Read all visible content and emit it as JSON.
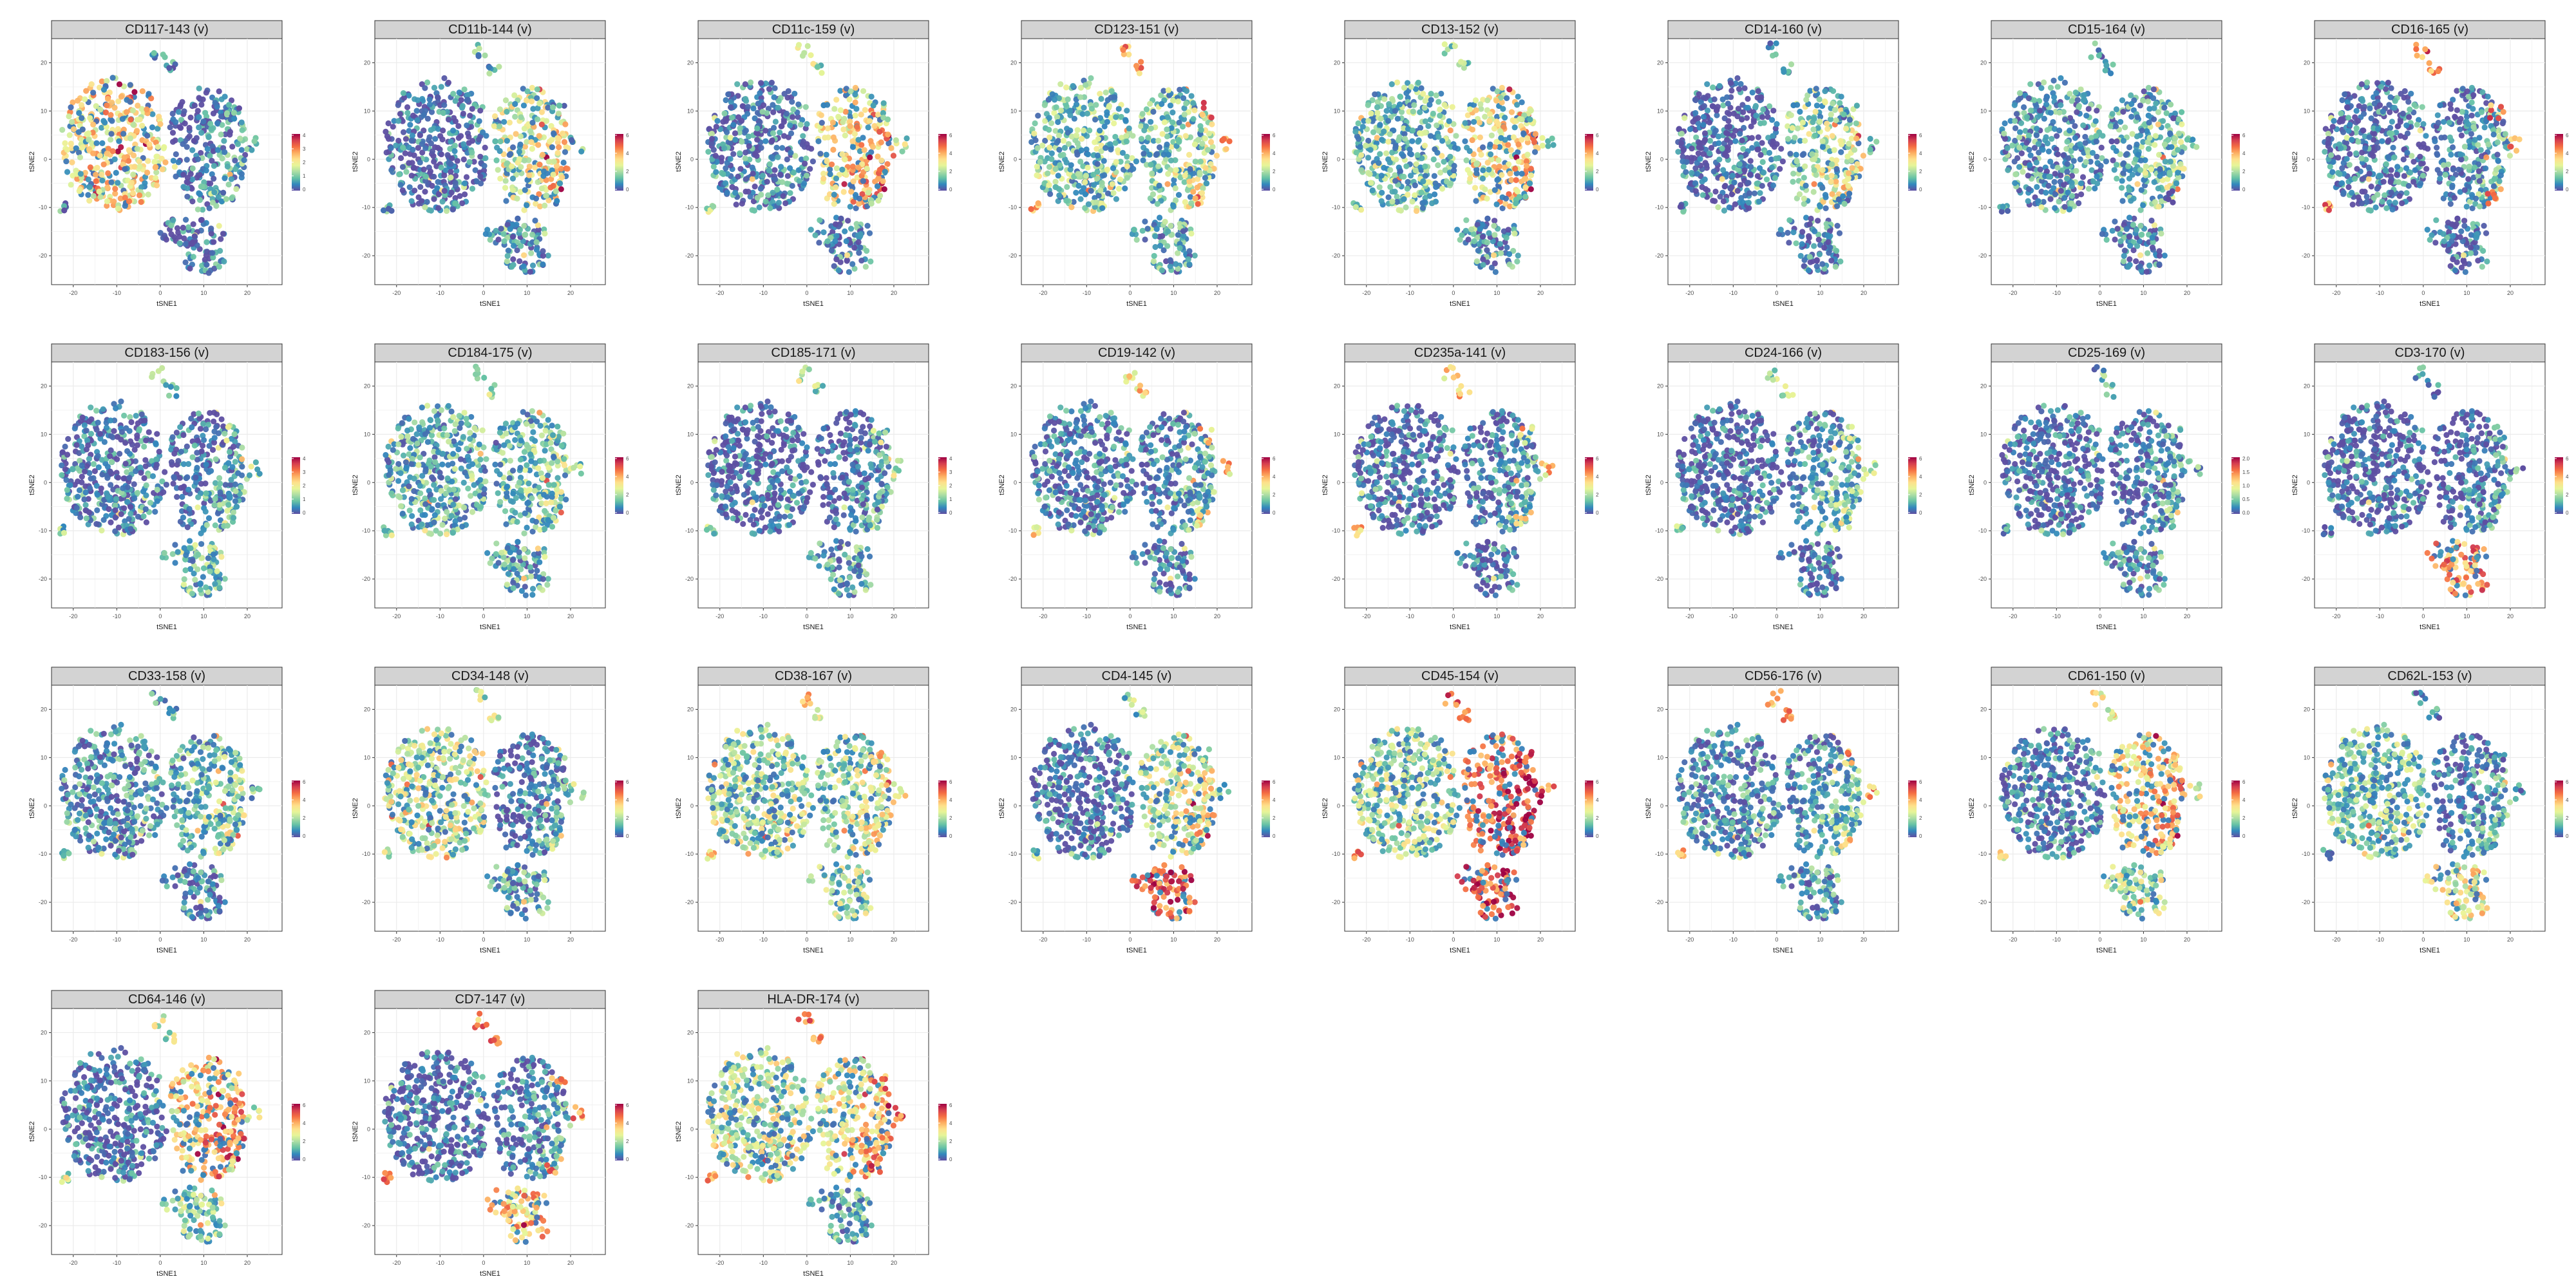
{
  "figure": {
    "type": "faceted tSNE scatter (marker expression)",
    "colormap": "Spectral (reversed)",
    "colormap_stops": [
      "#5e4fa2",
      "#3288bd",
      "#66c2a5",
      "#abdda4",
      "#e6f598",
      "#fee08b",
      "#fdae61",
      "#f46d43",
      "#d53e4f",
      "#9e0142"
    ],
    "point_color_low": "#4a3f8f",
    "strip_color": "#d3d3d3",
    "grid_color": "#ebebeb"
  },
  "chart_data": [
    {
      "type": "scatter",
      "title": "CD117-143 (v)",
      "xlabel": "tSNE1",
      "ylabel": "tSNE2",
      "xlim": [
        -25,
        28
      ],
      "ylim": [
        -26,
        25
      ],
      "xticks": [
        "-20",
        "-10",
        "0",
        "10",
        "20"
      ],
      "yticks": [
        "20",
        "10",
        "0",
        "-10",
        "-20"
      ],
      "colorbar_ticks": [
        "0",
        "1",
        "2",
        "3",
        "4"
      ],
      "grid": true,
      "legend": "right",
      "cluster_intensity": {
        "left": 0.55,
        "right": 0.08,
        "bottom": 0.05,
        "tips": 0.15
      }
    },
    {
      "type": "scatter",
      "title": "CD11b-144 (v)",
      "xlabel": "tSNE1",
      "ylabel": "tSNE2",
      "xlim": [
        -25,
        28
      ],
      "ylim": [
        -26,
        25
      ],
      "xticks": [
        "-20",
        "-10",
        "0",
        "10",
        "20"
      ],
      "yticks": [
        "20",
        "10",
        "0",
        "-10",
        "-20"
      ],
      "colorbar_ticks": [
        "0",
        "2",
        "4",
        "6"
      ],
      "grid": true,
      "legend": "right",
      "cluster_intensity": {
        "left": 0.05,
        "right": 0.48,
        "bottom": 0.15,
        "tips": 0.2
      }
    },
    {
      "type": "scatter",
      "title": "CD11c-159 (v)",
      "xlabel": "tSNE1",
      "ylabel": "tSNE2",
      "xlim": [
        -25,
        28
      ],
      "ylim": [
        -26,
        25
      ],
      "xticks": [
        "-20",
        "-10",
        "0",
        "10",
        "20"
      ],
      "yticks": [
        "20",
        "10",
        "0",
        "-10",
        "-20"
      ],
      "colorbar_ticks": [
        "0",
        "2",
        "4",
        "6"
      ],
      "grid": true,
      "legend": "right",
      "cluster_intensity": {
        "left": 0.1,
        "right": 0.6,
        "bottom": 0.12,
        "tips": 0.35
      }
    },
    {
      "type": "scatter",
      "title": "CD123-151 (v)",
      "xlabel": "tSNE1",
      "ylabel": "tSNE2",
      "xlim": [
        -25,
        28
      ],
      "ylim": [
        -26,
        25
      ],
      "xticks": [
        "-20",
        "-10",
        "0",
        "10",
        "20"
      ],
      "yticks": [
        "20",
        "10",
        "0",
        "-10",
        "-20"
      ],
      "colorbar_ticks": [
        "0",
        "2",
        "4",
        "6"
      ],
      "grid": true,
      "legend": "right",
      "cluster_intensity": {
        "left": 0.3,
        "right": 0.35,
        "bottom": 0.18,
        "tips": 0.7
      }
    },
    {
      "type": "scatter",
      "title": "CD13-152 (v)",
      "xlabel": "tSNE1",
      "ylabel": "tSNE2",
      "xlim": [
        -25,
        28
      ],
      "ylim": [
        -26,
        25
      ],
      "xticks": [
        "-20",
        "-10",
        "0",
        "10",
        "20"
      ],
      "yticks": [
        "20",
        "10",
        "0",
        "-10",
        "-20"
      ],
      "colorbar_ticks": [
        "0",
        "2",
        "4",
        "6"
      ],
      "grid": true,
      "legend": "right",
      "cluster_intensity": {
        "left": 0.28,
        "right": 0.55,
        "bottom": 0.15,
        "tips": 0.3
      }
    },
    {
      "type": "scatter",
      "title": "CD14-160 (v)",
      "xlabel": "tSNE1",
      "ylabel": "tSNE2",
      "xlim": [
        -25,
        28
      ],
      "ylim": [
        -26,
        25
      ],
      "xticks": [
        "-20",
        "-10",
        "0",
        "10",
        "20"
      ],
      "yticks": [
        "20",
        "10",
        "0",
        "-10",
        "-20"
      ],
      "colorbar_ticks": [
        "0",
        "2",
        "4",
        "6"
      ],
      "grid": true,
      "legend": "right",
      "cluster_intensity": {
        "left": 0.05,
        "right": 0.4,
        "bottom": 0.1,
        "tips": 0.15
      }
    },
    {
      "type": "scatter",
      "title": "CD15-164 (v)",
      "xlabel": "tSNE1",
      "ylabel": "tSNE2",
      "xlim": [
        -25,
        28
      ],
      "ylim": [
        -26,
        25
      ],
      "xticks": [
        "-20",
        "-10",
        "0",
        "10",
        "20"
      ],
      "yticks": [
        "20",
        "10",
        "0",
        "-10",
        "-20"
      ],
      "colorbar_ticks": [
        "0",
        "2",
        "4",
        "6"
      ],
      "grid": true,
      "legend": "right",
      "cluster_intensity": {
        "left": 0.15,
        "right": 0.25,
        "bottom": 0.1,
        "tips": 0.15
      }
    },
    {
      "type": "scatter",
      "title": "CD16-165 (v)",
      "xlabel": "tSNE1",
      "ylabel": "tSNE2",
      "xlim": [
        -25,
        28
      ],
      "ylim": [
        -26,
        25
      ],
      "xticks": [
        "-20",
        "-10",
        "0",
        "10",
        "20"
      ],
      "yticks": [
        "20",
        "10",
        "0",
        "-10",
        "-20"
      ],
      "colorbar_ticks": [
        "0",
        "2",
        "4",
        "6"
      ],
      "grid": true,
      "legend": "right",
      "cluster_intensity": {
        "left": 0.08,
        "right": 0.15,
        "bottom": 0.08,
        "tips": 0.75
      }
    },
    {
      "type": "scatter",
      "title": "CD183-156 (v)",
      "xlabel": "tSNE1",
      "ylabel": "tSNE2",
      "xlim": [
        -25,
        28
      ],
      "ylim": [
        -26,
        25
      ],
      "xticks": [
        "-20",
        "-10",
        "0",
        "10",
        "20"
      ],
      "yticks": [
        "20",
        "10",
        "0",
        "-10",
        "-20"
      ],
      "colorbar_ticks": [
        "0",
        "1",
        "2",
        "3",
        "4"
      ],
      "grid": true,
      "legend": "right",
      "cluster_intensity": {
        "left": 0.1,
        "right": 0.12,
        "bottom": 0.25,
        "tips": 0.3
      }
    },
    {
      "type": "scatter",
      "title": "CD184-175 (v)",
      "xlabel": "tSNE1",
      "ylabel": "tSNE2",
      "xlim": [
        -25,
        28
      ],
      "ylim": [
        -26,
        25
      ],
      "xticks": [
        "-20",
        "-10",
        "0",
        "10",
        "20"
      ],
      "yticks": [
        "20",
        "10",
        "0",
        "-10",
        "-20"
      ],
      "colorbar_ticks": [
        "0",
        "2",
        "4",
        "6"
      ],
      "grid": true,
      "legend": "right",
      "cluster_intensity": {
        "left": 0.22,
        "right": 0.3,
        "bottom": 0.2,
        "tips": 0.3
      }
    },
    {
      "type": "scatter",
      "title": "CD185-171 (v)",
      "xlabel": "tSNE1",
      "ylabel": "tSNE2",
      "xlim": [
        -25,
        28
      ],
      "ylim": [
        -26,
        25
      ],
      "xticks": [
        "-20",
        "-10",
        "0",
        "10",
        "20"
      ],
      "yticks": [
        "20",
        "10",
        "0",
        "-10",
        "-20"
      ],
      "colorbar_ticks": [
        "0",
        "1",
        "2",
        "3",
        "4"
      ],
      "grid": true,
      "legend": "right",
      "cluster_intensity": {
        "left": 0.05,
        "right": 0.08,
        "bottom": 0.2,
        "tips": 0.35
      }
    },
    {
      "type": "scatter",
      "title": "CD19-142 (v)",
      "xlabel": "tSNE1",
      "ylabel": "tSNE2",
      "xlim": [
        -25,
        28
      ],
      "ylim": [
        -26,
        25
      ],
      "xticks": [
        "-20",
        "-10",
        "0",
        "10",
        "20"
      ],
      "yticks": [
        "20",
        "10",
        "0",
        "-10",
        "-20"
      ],
      "colorbar_ticks": [
        "0",
        "2",
        "4",
        "6"
      ],
      "grid": true,
      "legend": "right",
      "cluster_intensity": {
        "left": 0.1,
        "right": 0.15,
        "bottom": 0.1,
        "tips": 0.6
      }
    },
    {
      "type": "scatter",
      "title": "CD235a-141 (v)",
      "xlabel": "tSNE1",
      "ylabel": "tSNE2",
      "xlim": [
        -25,
        28
      ],
      "ylim": [
        -26,
        25
      ],
      "xticks": [
        "-20",
        "-10",
        "0",
        "10",
        "20"
      ],
      "yticks": [
        "20",
        "10",
        "0",
        "-10",
        "-20"
      ],
      "colorbar_ticks": [
        "0",
        "2",
        "4",
        "6"
      ],
      "grid": true,
      "legend": "right",
      "cluster_intensity": {
        "left": 0.06,
        "right": 0.12,
        "bottom": 0.08,
        "tips": 0.6
      }
    },
    {
      "type": "scatter",
      "title": "CD24-166 (v)",
      "xlabel": "tSNE1",
      "ylabel": "tSNE2",
      "xlim": [
        -25,
        28
      ],
      "ylim": [
        -26,
        25
      ],
      "xticks": [
        "-20",
        "-10",
        "0",
        "10",
        "20"
      ],
      "yticks": [
        "20",
        "10",
        "0",
        "-10",
        "-20"
      ],
      "colorbar_ticks": [
        "0",
        "2",
        "4",
        "6"
      ],
      "grid": true,
      "legend": "right",
      "cluster_intensity": {
        "left": 0.06,
        "right": 0.2,
        "bottom": 0.08,
        "tips": 0.3
      }
    },
    {
      "type": "scatter",
      "title": "CD25-169 (v)",
      "xlabel": "tSNE1",
      "ylabel": "tSNE2",
      "xlim": [
        -25,
        28
      ],
      "ylim": [
        -26,
        25
      ],
      "xticks": [
        "-20",
        "-10",
        "0",
        "10",
        "20"
      ],
      "yticks": [
        "20",
        "10",
        "0",
        "-10",
        "-20"
      ],
      "colorbar_ticks": [
        "2.0",
        "1.5",
        "1.0",
        "0.5",
        "0.0"
      ],
      "grid": true,
      "legend": "right",
      "cluster_intensity": {
        "left": 0.05,
        "right": 0.1,
        "bottom": 0.12,
        "tips": 0.2
      }
    },
    {
      "type": "scatter",
      "title": "CD3-170 (v)",
      "xlabel": "tSNE1",
      "ylabel": "tSNE2",
      "xlim": [
        -25,
        28
      ],
      "ylim": [
        -26,
        25
      ],
      "xticks": [
        "-20",
        "-10",
        "0",
        "10",
        "20"
      ],
      "yticks": [
        "20",
        "10",
        "0",
        "-10",
        "-20"
      ],
      "colorbar_ticks": [
        "0",
        "2",
        "4",
        "6"
      ],
      "grid": true,
      "legend": "right",
      "cluster_intensity": {
        "left": 0.04,
        "right": 0.06,
        "bottom": 0.72,
        "tips": 0.15
      }
    },
    {
      "type": "scatter",
      "title": "CD33-158 (v)",
      "xlabel": "tSNE1",
      "ylabel": "tSNE2",
      "xlim": [
        -25,
        28
      ],
      "ylim": [
        -26,
        25
      ],
      "xticks": [
        "-20",
        "-10",
        "0",
        "10",
        "20"
      ],
      "yticks": [
        "20",
        "10",
        "0",
        "-10",
        "-20"
      ],
      "colorbar_ticks": [
        "0",
        "2",
        "4",
        "6"
      ],
      "grid": true,
      "legend": "right",
      "cluster_intensity": {
        "left": 0.15,
        "right": 0.3,
        "bottom": 0.1,
        "tips": 0.2
      }
    },
    {
      "type": "scatter",
      "title": "CD34-148 (v)",
      "xlabel": "tSNE1",
      "ylabel": "tSNE2",
      "xlim": [
        -25,
        28
      ],
      "ylim": [
        -26,
        25
      ],
      "xticks": [
        "-20",
        "-10",
        "0",
        "10",
        "20"
      ],
      "yticks": [
        "20",
        "10",
        "0",
        "-10",
        "-20"
      ],
      "colorbar_ticks": [
        "0",
        "2",
        "4",
        "6"
      ],
      "grid": true,
      "legend": "right",
      "cluster_intensity": {
        "left": 0.42,
        "right": 0.1,
        "bottom": 0.2,
        "tips": 0.35
      }
    },
    {
      "type": "scatter",
      "title": "CD38-167 (v)",
      "xlabel": "tSNE1",
      "ylabel": "tSNE2",
      "xlim": [
        -25,
        28
      ],
      "ylim": [
        -26,
        25
      ],
      "xticks": [
        "-20",
        "-10",
        "0",
        "10",
        "20"
      ],
      "yticks": [
        "20",
        "10",
        "0",
        "-10",
        "-20"
      ],
      "colorbar_ticks": [
        "0",
        "2",
        "4",
        "6"
      ],
      "grid": true,
      "legend": "right",
      "cluster_intensity": {
        "left": 0.38,
        "right": 0.4,
        "bottom": 0.35,
        "tips": 0.55
      }
    },
    {
      "type": "scatter",
      "title": "CD4-145 (v)",
      "xlabel": "tSNE1",
      "ylabel": "tSNE2",
      "xlim": [
        -25,
        28
      ],
      "ylim": [
        -26,
        25
      ],
      "xticks": [
        "-20",
        "-10",
        "0",
        "10",
        "20"
      ],
      "yticks": [
        "20",
        "10",
        "0",
        "-10",
        "-20"
      ],
      "colorbar_ticks": [
        "0",
        "2",
        "4",
        "6"
      ],
      "grid": true,
      "legend": "right",
      "cluster_intensity": {
        "left": 0.06,
        "right": 0.45,
        "bottom": 0.82,
        "tips": 0.3
      }
    },
    {
      "type": "scatter",
      "title": "CD45-154 (v)",
      "xlabel": "tSNE1",
      "ylabel": "tSNE2",
      "xlim": [
        -25,
        28
      ],
      "ylim": [
        -26,
        25
      ],
      "xticks": [
        "-20",
        "-10",
        "0",
        "10",
        "20"
      ],
      "yticks": [
        "20",
        "10",
        "0",
        "-10",
        "-20"
      ],
      "colorbar_ticks": [
        "0",
        "2",
        "4",
        "6"
      ],
      "grid": true,
      "legend": "right",
      "cluster_intensity": {
        "left": 0.35,
        "right": 0.82,
        "bottom": 0.85,
        "tips": 0.8
      }
    },
    {
      "type": "scatter",
      "title": "CD56-176 (v)",
      "xlabel": "tSNE1",
      "ylabel": "tSNE2",
      "xlim": [
        -25,
        28
      ],
      "ylim": [
        -26,
        25
      ],
      "xticks": [
        "-20",
        "-10",
        "0",
        "10",
        "20"
      ],
      "yticks": [
        "20",
        "10",
        "0",
        "-10",
        "-20"
      ],
      "colorbar_ticks": [
        "0",
        "2",
        "4",
        "6"
      ],
      "grid": true,
      "legend": "right",
      "cluster_intensity": {
        "left": 0.15,
        "right": 0.2,
        "bottom": 0.15,
        "tips": 0.65
      }
    },
    {
      "type": "scatter",
      "title": "CD61-150 (v)",
      "xlabel": "tSNE1",
      "ylabel": "tSNE2",
      "xlim": [
        -25,
        28
      ],
      "ylim": [
        -26,
        25
      ],
      "xticks": [
        "-20",
        "-10",
        "0",
        "10",
        "20"
      ],
      "yticks": [
        "20",
        "10",
        "0",
        "-10",
        "-20"
      ],
      "colorbar_ticks": [
        "0",
        "2",
        "4",
        "6"
      ],
      "grid": true,
      "legend": "right",
      "cluster_intensity": {
        "left": 0.1,
        "right": 0.6,
        "bottom": 0.35,
        "tips": 0.5
      }
    },
    {
      "type": "scatter",
      "title": "CD62L-153 (v)",
      "xlabel": "tSNE1",
      "ylabel": "tSNE2",
      "xlim": [
        -25,
        28
      ],
      "ylim": [
        -26,
        25
      ],
      "xticks": [
        "-20",
        "-10",
        "0",
        "10",
        "20"
      ],
      "yticks": [
        "20",
        "10",
        "0",
        "-10",
        "-20"
      ],
      "colorbar_ticks": [
        "0",
        "2",
        "4",
        "6"
      ],
      "grid": true,
      "legend": "right",
      "cluster_intensity": {
        "left": 0.3,
        "right": 0.12,
        "bottom": 0.5,
        "tips": 0.15
      }
    },
    {
      "type": "scatter",
      "title": "CD64-146 (v)",
      "xlabel": "tSNE1",
      "ylabel": "tSNE2",
      "xlim": [
        -25,
        28
      ],
      "ylim": [
        -26,
        25
      ],
      "xticks": [
        "-20",
        "-10",
        "0",
        "10",
        "20"
      ],
      "yticks": [
        "20",
        "10",
        "0",
        "-10",
        "-20"
      ],
      "colorbar_ticks": [
        "0",
        "2",
        "4",
        "6"
      ],
      "grid": true,
      "legend": "right",
      "cluster_intensity": {
        "left": 0.06,
        "right": 0.65,
        "bottom": 0.3,
        "tips": 0.4
      }
    },
    {
      "type": "scatter",
      "title": "CD7-147 (v)",
      "xlabel": "tSNE1",
      "ylabel": "tSNE2",
      "xlim": [
        -25,
        28
      ],
      "ylim": [
        -26,
        25
      ],
      "xticks": [
        "-20",
        "-10",
        "0",
        "10",
        "20"
      ],
      "yticks": [
        "20",
        "10",
        "0",
        "-10",
        "-20"
      ],
      "colorbar_ticks": [
        "0",
        "2",
        "4",
        "6"
      ],
      "grid": true,
      "legend": "right",
      "cluster_intensity": {
        "left": 0.05,
        "right": 0.12,
        "bottom": 0.62,
        "tips": 0.7
      }
    },
    {
      "type": "scatter",
      "title": "HLA-DR-174 (v)",
      "xlabel": "tSNE1",
      "ylabel": "tSNE2",
      "xlim": [
        -25,
        28
      ],
      "ylim": [
        -26,
        25
      ],
      "xticks": [
        "-20",
        "-10",
        "0",
        "10",
        "20"
      ],
      "yticks": [
        "20",
        "10",
        "0",
        "-10",
        "-20"
      ],
      "colorbar_ticks": [
        "0",
        "2",
        "4",
        "6"
      ],
      "grid": true,
      "legend": "right",
      "cluster_intensity": {
        "left": 0.42,
        "right": 0.55,
        "bottom": 0.2,
        "tips": 0.75
      }
    }
  ]
}
